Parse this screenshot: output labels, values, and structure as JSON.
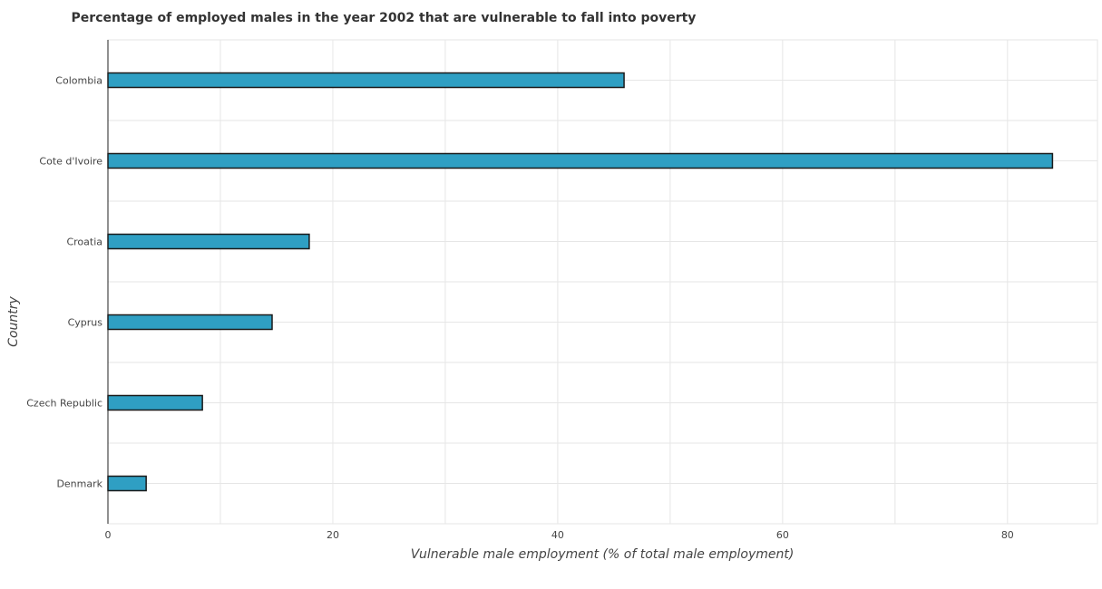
{
  "chart_data": {
    "type": "bar",
    "orientation": "horizontal",
    "title": "Percentage of employed males in the year 2002 that are vulnerable to fall into poverty",
    "xlabel": "Vulnerable male employment (% of total male employment)",
    "ylabel": "Country",
    "categories": [
      "Colombia",
      "Cote d'Ivoire",
      "Croatia",
      "Cyprus",
      "Czech Republic",
      "Denmark"
    ],
    "values": [
      45.9,
      84.0,
      17.9,
      14.6,
      8.4,
      3.4
    ],
    "xlim": [
      0,
      88
    ],
    "xticks": [
      0,
      20,
      40,
      60,
      80
    ],
    "xtick_labels": [
      "0",
      "20",
      "40",
      "60",
      "80"
    ],
    "grid": true,
    "bar_color": "#2f9fc3"
  }
}
